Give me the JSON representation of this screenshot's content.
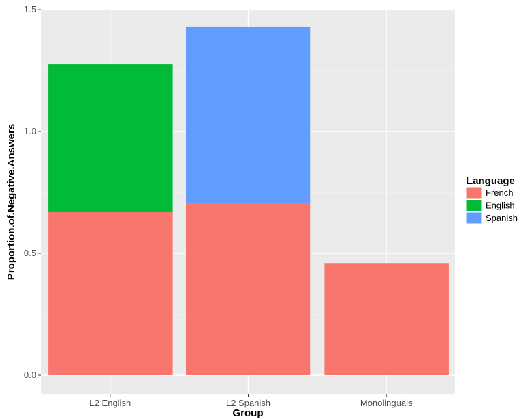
{
  "chart_data": {
    "type": "bar",
    "stacked": true,
    "categories": [
      "L2 English",
      "L2 Spanish",
      "Monolinguals"
    ],
    "series": [
      {
        "name": "French",
        "values": [
          0.67,
          0.705,
          0.46
        ],
        "color": "#F8766D"
      },
      {
        "name": "English",
        "values": [
          0.605,
          0,
          0
        ],
        "color": "#00BA38"
      },
      {
        "name": "Spanish",
        "values": [
          0,
          0.725,
          0
        ],
        "color": "#619CFF"
      }
    ],
    "xlabel": "Group",
    "ylabel": "Proportion.of.Negative.Answers",
    "ylim": [
      0,
      1.5
    ],
    "yticks": [
      0.0,
      0.5,
      1.0,
      1.5
    ],
    "ytick_labels": [
      "0.0",
      "0.5",
      "1.0",
      "1.5"
    ],
    "grid": true,
    "legend_title": "Language",
    "legend_position": "right",
    "panel_background": "#EBEBEB",
    "grid_color": "#FFFFFF"
  }
}
